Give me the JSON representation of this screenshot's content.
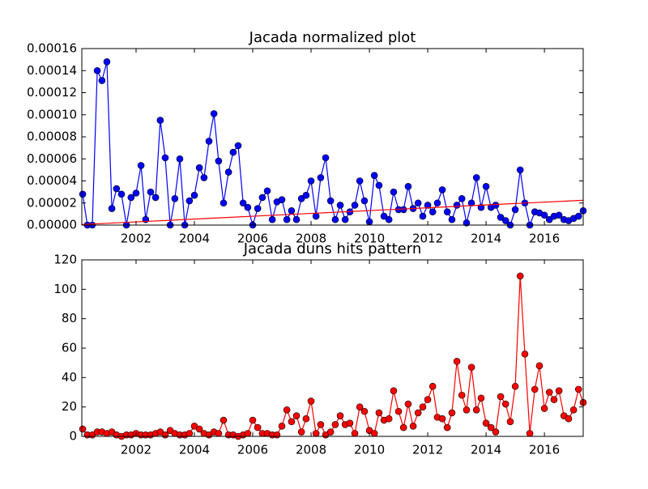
{
  "chart_data": [
    {
      "type": "line",
      "title": "Jacada normalized plot",
      "x": [
        2000.17,
        2000.33,
        2000.5,
        2000.67,
        2000.83,
        2001,
        2001.17,
        2001.33,
        2001.5,
        2001.67,
        2001.83,
        2002,
        2002.17,
        2002.33,
        2002.5,
        2002.67,
        2002.83,
        2003,
        2003.17,
        2003.33,
        2003.5,
        2003.67,
        2003.83,
        2004,
        2004.17,
        2004.33,
        2004.5,
        2004.67,
        2004.83,
        2005,
        2005.17,
        2005.33,
        2005.5,
        2005.67,
        2005.83,
        2006,
        2006.17,
        2006.33,
        2006.5,
        2006.67,
        2006.83,
        2007,
        2007.17,
        2007.33,
        2007.5,
        2007.67,
        2007.83,
        2008,
        2008.17,
        2008.33,
        2008.5,
        2008.67,
        2008.83,
        2009,
        2009.17,
        2009.33,
        2009.5,
        2009.67,
        2009.83,
        2010,
        2010.17,
        2010.33,
        2010.5,
        2010.67,
        2010.83,
        2011,
        2011.17,
        2011.33,
        2011.5,
        2011.67,
        2011.83,
        2012,
        2012.17,
        2012.33,
        2012.5,
        2012.67,
        2012.83,
        2013,
        2013.17,
        2013.33,
        2013.5,
        2013.67,
        2013.83,
        2014,
        2014.17,
        2014.33,
        2014.5,
        2014.67,
        2014.83,
        2015,
        2015.17,
        2015.33,
        2015.5,
        2015.67,
        2015.83,
        2016,
        2016.17,
        2016.33,
        2016.5,
        2016.67,
        2016.83,
        2017,
        2017.17,
        2017.33
      ],
      "series": [
        {
          "color": "#0000ff",
          "values": [
            2.8e-05,
            0,
            0,
            0.00014,
            0.000131,
            0.000148,
            1.5e-05,
            3.3e-05,
            2.8e-05,
            0,
            2.5e-05,
            2.9e-05,
            5.4e-05,
            5e-06,
            3e-05,
            2.5e-05,
            9.5e-05,
            6.1e-05,
            0,
            2.4e-05,
            6e-05,
            0,
            2.2e-05,
            2.7e-05,
            5.2e-05,
            4.3e-05,
            7.6e-05,
            0.000101,
            5.8e-05,
            2e-05,
            4.8e-05,
            6.6e-05,
            7.2e-05,
            2e-05,
            1.6e-05,
            0,
            1.5e-05,
            2.5e-05,
            3.1e-05,
            5e-06,
            2.1e-05,
            2.3e-05,
            5e-06,
            1.3e-05,
            5e-06,
            2.4e-05,
            2.7e-05,
            4e-05,
            8e-06,
            4.3e-05,
            6.1e-05,
            2.2e-05,
            5e-06,
            1.8e-05,
            5e-06,
            1.2e-05,
            1.8e-05,
            4e-05,
            2.2e-05,
            3e-06,
            4.5e-05,
            3.6e-05,
            8e-06,
            5e-06,
            3e-05,
            1.4e-05,
            1.4e-05,
            3.5e-05,
            1.5e-05,
            2e-05,
            8e-06,
            1.8e-05,
            1.2e-05,
            2e-05,
            3.2e-05,
            1.2e-05,
            5e-06,
            1.8e-05,
            2.4e-05,
            2e-06,
            2e-05,
            4.3e-05,
            1.6e-05,
            3.5e-05,
            1.6e-05,
            1.8e-05,
            7e-06,
            4e-06,
            0,
            1.4e-05,
            5e-05,
            2e-05,
            0,
            1.2e-05,
            1.1e-05,
            9e-06,
            5e-06,
            8e-06,
            9e-06,
            5e-06,
            4e-06,
            6e-06,
            8e-06,
            1.3e-05
          ]
        }
      ],
      "trend_line": {
        "color": "#ff0000",
        "x": [
          2000.14,
          2017.33
        ],
        "values": [
          5e-07,
          2.25e-05
        ]
      },
      "xlim": [
        2000.14,
        2017.33
      ],
      "xticks": [
        2002,
        2004,
        2006,
        2008,
        2010,
        2012,
        2014,
        2016
      ],
      "ylim": [
        0,
        0.00016
      ],
      "yticks": [
        {
          "value": 0,
          "label": "0.00000"
        },
        {
          "value": 2e-05,
          "label": "0.00002"
        },
        {
          "value": 4e-05,
          "label": "0.00004"
        },
        {
          "value": 6e-05,
          "label": "0.00006"
        },
        {
          "value": 8e-05,
          "label": "0.00008"
        },
        {
          "value": 0.0001,
          "label": "0.00010"
        },
        {
          "value": 0.00012,
          "label": "0.00012"
        },
        {
          "value": 0.00014,
          "label": "0.00014"
        },
        {
          "value": 0.00016,
          "label": "0.00016"
        }
      ]
    },
    {
      "type": "line",
      "title": "Jacada duns hits pattern",
      "x": [
        2000.17,
        2000.33,
        2000.5,
        2000.67,
        2000.83,
        2001,
        2001.17,
        2001.33,
        2001.5,
        2001.67,
        2001.83,
        2002,
        2002.17,
        2002.33,
        2002.5,
        2002.67,
        2002.83,
        2003,
        2003.17,
        2003.33,
        2003.5,
        2003.67,
        2003.83,
        2004,
        2004.17,
        2004.33,
        2004.5,
        2004.67,
        2004.83,
        2005,
        2005.17,
        2005.33,
        2005.5,
        2005.67,
        2005.83,
        2006,
        2006.17,
        2006.33,
        2006.5,
        2006.67,
        2006.83,
        2007,
        2007.17,
        2007.33,
        2007.5,
        2007.67,
        2007.83,
        2008,
        2008.17,
        2008.33,
        2008.5,
        2008.67,
        2008.83,
        2009,
        2009.17,
        2009.33,
        2009.5,
        2009.67,
        2009.83,
        2010,
        2010.17,
        2010.33,
        2010.5,
        2010.67,
        2010.83,
        2011,
        2011.17,
        2011.33,
        2011.5,
        2011.67,
        2011.83,
        2012,
        2012.17,
        2012.33,
        2012.5,
        2012.67,
        2012.83,
        2013,
        2013.17,
        2013.33,
        2013.5,
        2013.67,
        2013.83,
        2014,
        2014.17,
        2014.33,
        2014.5,
        2014.67,
        2014.83,
        2015,
        2015.17,
        2015.33,
        2015.5,
        2015.67,
        2015.83,
        2016,
        2016.17,
        2016.33,
        2016.5,
        2016.67,
        2016.83,
        2017,
        2017.17,
        2017.33
      ],
      "series": [
        {
          "color": "#ff0000",
          "values": [
            5,
            1,
            1,
            3,
            3,
            2,
            3,
            1,
            0,
            1,
            1,
            2,
            1,
            1,
            1,
            2,
            3,
            1,
            4,
            2,
            1,
            1,
            2,
            7,
            5,
            2,
            1,
            3,
            2,
            11,
            1,
            1,
            0,
            1,
            2,
            11,
            6,
            2,
            2,
            1,
            1,
            7,
            18,
            10,
            14,
            3,
            12,
            24,
            2,
            8,
            1,
            3,
            8,
            14,
            8,
            9,
            2,
            20,
            17,
            4,
            2,
            16,
            11,
            12,
            31,
            17,
            6,
            22,
            7,
            16,
            20,
            25,
            34,
            13,
            12,
            6,
            16,
            51,
            28,
            18,
            47,
            18,
            26,
            9,
            6,
            3,
            27,
            22,
            10,
            34,
            109,
            56,
            2,
            32,
            48,
            19,
            30,
            25,
            31,
            14,
            12,
            18,
            32,
            23
          ]
        }
      ],
      "xlim": [
        2000.14,
        2017.33
      ],
      "xticks": [
        2002,
        2004,
        2006,
        2008,
        2010,
        2012,
        2014,
        2016
      ],
      "ylim": [
        0,
        120
      ],
      "yticks": [
        0,
        20,
        40,
        60,
        80,
        100,
        120
      ]
    }
  ]
}
